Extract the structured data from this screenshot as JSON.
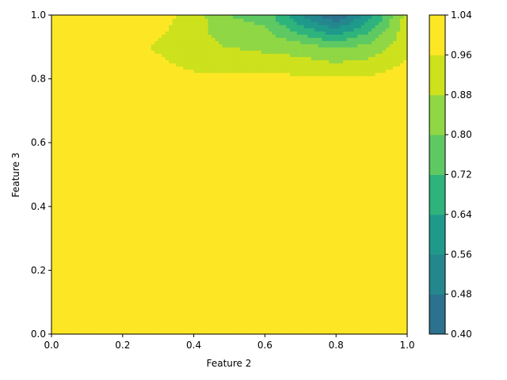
{
  "chart_data": {
    "type": "heatmap",
    "subtype": "filled-contour",
    "title": "",
    "xlabel": "Feature 2",
    "ylabel": "Feature 3",
    "xlim": [
      0.0,
      1.0
    ],
    "ylim": [
      0.0,
      1.0
    ],
    "x_ticks": [
      "0.0",
      "0.2",
      "0.4",
      "0.6",
      "0.8",
      "1.0"
    ],
    "y_ticks": [
      "0.0",
      "0.2",
      "0.4",
      "0.6",
      "0.8",
      "1.0"
    ],
    "grid": false,
    "colorbar": {
      "ticks": [
        "0.40",
        "0.48",
        "0.56",
        "0.64",
        "0.72",
        "0.80",
        "0.88",
        "0.96",
        "1.04"
      ],
      "levels": [
        0.4,
        0.48,
        0.56,
        0.64,
        0.72,
        0.8,
        0.88,
        0.96,
        1.04
      ],
      "colors": [
        "#2c728e",
        "#24878e",
        "#1f9a8a",
        "#2eb37c",
        "#5ec962",
        "#8fd744",
        "#cde11d",
        "#fde725"
      ]
    },
    "x": [
      0.0,
      0.1,
      0.2,
      0.3,
      0.4,
      0.5,
      0.6,
      0.7,
      0.8,
      0.9,
      1.0
    ],
    "y": [
      0.0,
      0.8,
      0.9,
      1.0
    ],
    "z": [
      [
        1.0,
        1.0,
        1.0,
        1.0,
        1.0,
        1.0,
        1.0,
        1.0,
        1.0,
        1.0,
        1.0
      ],
      [
        1.0,
        1.0,
        1.0,
        1.0,
        0.98,
        0.98,
        0.98,
        0.98,
        0.98,
        0.98,
        1.0
      ],
      [
        1.0,
        1.0,
        1.0,
        0.95,
        0.9,
        0.88,
        0.86,
        0.84,
        0.79,
        0.83,
        0.94
      ],
      [
        1.0,
        1.0,
        1.0,
        1.0,
        0.92,
        0.8,
        0.77,
        0.56,
        0.4,
        0.62,
        0.92
      ]
    ]
  }
}
